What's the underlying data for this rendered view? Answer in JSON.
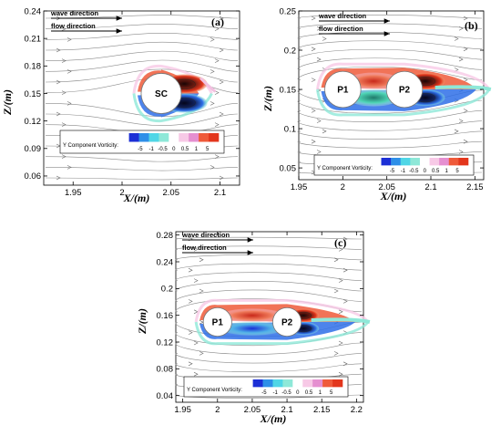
{
  "panels": [
    {
      "id": "a",
      "panel_label": "(a)",
      "xlabel": "X/(m)",
      "ylabel": "Z/(m)",
      "annotations": [
        "wave direction",
        "flow direction"
      ],
      "cylinders": [
        {
          "label": "SC",
          "cx": 2.04,
          "cz": 0.15,
          "r": 0.0205
        }
      ],
      "legend_title": "Y Component Vorticity:",
      "legend_ticks": [
        "-5",
        "-1",
        "-0.5",
        "0",
        "0.5",
        "1",
        "5"
      ],
      "legend_colors": [
        "#1c2fd6",
        "#2e8fe8",
        "#4fd6e6",
        "#8ee8d8",
        "#ffffff",
        "#f7c9e6",
        "#e58fd0",
        "#ef5a3a",
        "#e3361c"
      ],
      "chart_data": {
        "type": "contour",
        "xlim": [
          1.92,
          2.12
        ],
        "ylim": [
          0.05,
          0.24
        ],
        "x_ticks": [
          1.95,
          2.0,
          2.05,
          2.1
        ],
        "x_tick_labels": [
          "1.95",
          "2",
          "2.05",
          "2.1"
        ],
        "y_ticks": [
          0.06,
          0.09,
          0.12,
          0.15,
          0.18,
          0.21,
          0.24
        ],
        "y_tick_labels": [
          "0.06",
          "0.09",
          "0.12",
          "0.15",
          "0.18",
          "0.21",
          "0.24"
        ],
        "colorbar_levels": [
          -5,
          -1,
          -0.5,
          0,
          0.5,
          1,
          5
        ]
      }
    },
    {
      "id": "b",
      "panel_label": "(b)",
      "xlabel": "X/(m)",
      "ylabel": "Z/(m)",
      "annotations": [
        "wave direction",
        "flow direction"
      ],
      "cylinders": [
        {
          "label": "P1",
          "cx": 2.0,
          "cz": 0.15,
          "r": 0.0205
        },
        {
          "label": "P2",
          "cx": 2.07,
          "cz": 0.15,
          "r": 0.0205
        }
      ],
      "legend_title": "Y Component Vorticity:",
      "legend_ticks": [
        "-5",
        "-1",
        "-0.5",
        "0",
        "0.5",
        "1",
        "5"
      ],
      "legend_colors": [
        "#1c2fd6",
        "#2e8fe8",
        "#4fd6e6",
        "#8ee8d8",
        "#ffffff",
        "#f7c9e6",
        "#e58fd0",
        "#ef5a3a",
        "#e3361c"
      ],
      "chart_data": {
        "type": "contour",
        "xlim": [
          1.95,
          2.16
        ],
        "ylim": [
          0.035,
          0.25
        ],
        "x_ticks": [
          1.95,
          2.0,
          2.05,
          2.1,
          2.15
        ],
        "x_tick_labels": [
          "1.95",
          "2",
          "2.05",
          "2.1",
          "2.15"
        ],
        "y_ticks": [
          0.05,
          0.1,
          0.15,
          0.2,
          0.25
        ],
        "y_tick_labels": [
          "0.05",
          "0.1",
          "0.15",
          "0.2",
          "0.25"
        ],
        "colorbar_levels": [
          -5,
          -1,
          -0.5,
          0,
          0.5,
          1,
          5
        ]
      }
    },
    {
      "id": "c",
      "panel_label": "(c)",
      "xlabel": "X/(m)",
      "ylabel": "Z/(m)",
      "annotations": [
        "wave direction",
        "flow direction"
      ],
      "cylinders": [
        {
          "label": "P1",
          "cx": 2.0,
          "cz": 0.15,
          "r": 0.0205
        },
        {
          "label": "P2",
          "cx": 2.1,
          "cz": 0.15,
          "r": 0.0205
        }
      ],
      "legend_title": "Y Component Vorticity:",
      "legend_ticks": [
        "-5",
        "-1",
        "-0.5",
        "0",
        "0.5",
        "1",
        "5"
      ],
      "legend_colors": [
        "#1c2fd6",
        "#2e8fe8",
        "#4fd6e6",
        "#8ee8d8",
        "#ffffff",
        "#f7c9e6",
        "#e58fd0",
        "#ef5a3a",
        "#e3361c"
      ],
      "chart_data": {
        "type": "contour",
        "xlim": [
          1.94,
          2.21
        ],
        "ylim": [
          0.03,
          0.285
        ],
        "x_ticks": [
          1.95,
          2.0,
          2.05,
          2.1,
          2.15,
          2.2
        ],
        "x_tick_labels": [
          "1.95",
          "2",
          "2.05",
          "2.1",
          "2.15",
          "2.2"
        ],
        "y_ticks": [
          0.04,
          0.08,
          0.12,
          0.16,
          0.2,
          0.24,
          0.28
        ],
        "y_tick_labels": [
          "0.04",
          "0.08",
          "0.12",
          "0.16",
          "0.2",
          "0.24",
          "0.28"
        ],
        "colorbar_levels": [
          -5,
          -1,
          -0.5,
          0,
          0.5,
          1,
          5
        ]
      }
    }
  ]
}
